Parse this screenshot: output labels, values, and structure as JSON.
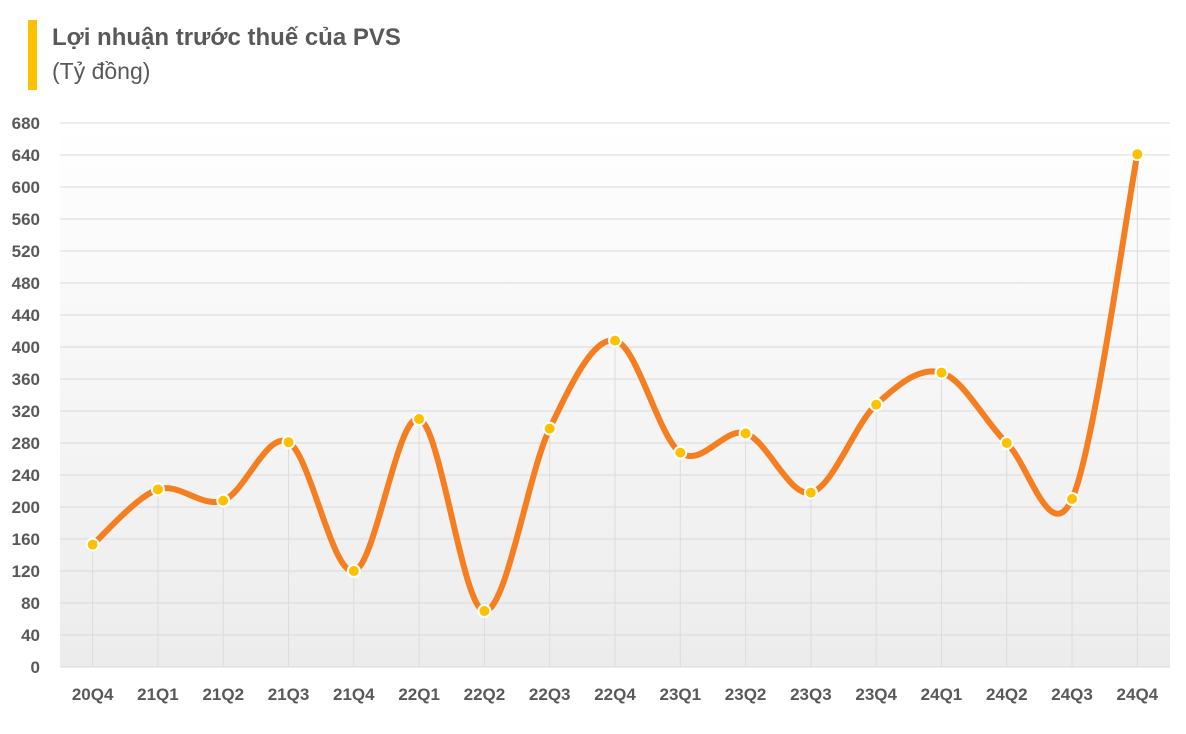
{
  "chart_data": {
    "type": "line",
    "title": "Lợi nhuận trước thuế của PVS",
    "subtitle": "(Tỷ đồng)",
    "categories": [
      "20Q4",
      "21Q1",
      "21Q2",
      "21Q3",
      "21Q4",
      "22Q1",
      "22Q2",
      "22Q3",
      "22Q4",
      "23Q1",
      "23Q2",
      "23Q3",
      "23Q4",
      "24Q1",
      "24Q2",
      "24Q3",
      "24Q4"
    ],
    "series": [
      {
        "values": [
          153,
          222,
          208,
          281,
          120,
          310,
          70,
          298,
          408,
          268,
          292,
          218,
          328,
          368,
          280,
          210,
          641
        ]
      }
    ],
    "y_ticks": [
      0,
      40,
      80,
      120,
      160,
      200,
      240,
      280,
      320,
      360,
      400,
      440,
      480,
      520,
      560,
      600,
      640,
      680
    ],
    "ylim": [
      0,
      680
    ],
    "grid": true,
    "legend": "none",
    "line_color": "#F47E20",
    "marker_color": "#FFC000",
    "accent_color": "#FFC000"
  }
}
